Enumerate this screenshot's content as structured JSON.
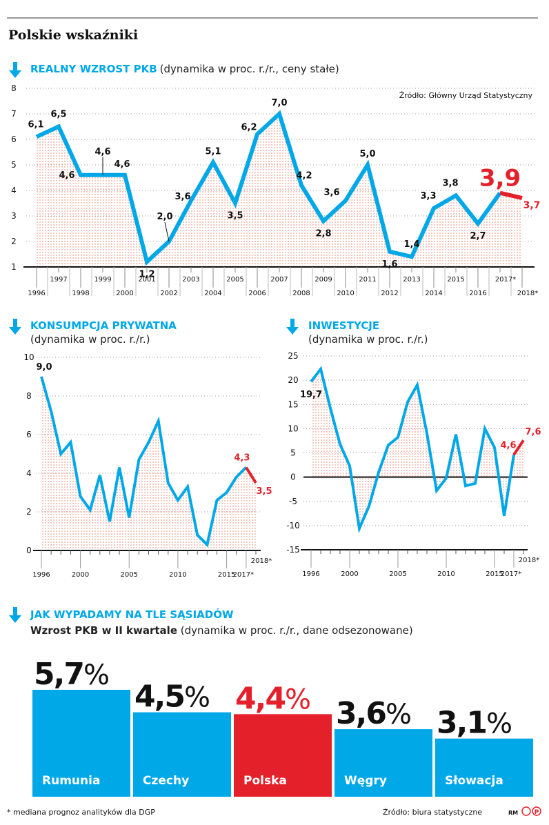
{
  "title": "Polskie wskaźniki",
  "colors": {
    "blue": "#00a8e8",
    "red": "#e4202a",
    "dots": "#f0a090"
  },
  "chart_data": [
    {
      "type": "line",
      "title": "REALNY WZROST PKB",
      "subtitle": "(dynamika w proc. r./r., ceny stałe)",
      "source": "Źródło: Główny Urząd Statystyczny",
      "ylim": [
        1,
        8
      ],
      "yticks": [
        "1",
        "2",
        "3",
        "4",
        "5",
        "6",
        "7",
        "8"
      ],
      "grid": true,
      "x": [
        "1996",
        "1997",
        "1998",
        "1999",
        "2000",
        "2001",
        "2002",
        "2003",
        "2004",
        "2005",
        "2006",
        "2007",
        "2008",
        "2009",
        "2010",
        "2011",
        "2012",
        "2013",
        "2014",
        "2015",
        "2016",
        "2017*",
        "2018*"
      ],
      "values": [
        6.1,
        6.5,
        4.6,
        4.6,
        4.6,
        1.2,
        2.0,
        3.6,
        5.1,
        3.5,
        6.2,
        7.0,
        4.2,
        2.8,
        3.6,
        5.0,
        1.6,
        1.4,
        3.3,
        3.8,
        2.7,
        3.9,
        3.7
      ],
      "labels": [
        "6,1",
        "6,5",
        "4,6",
        "4,6",
        "4,6",
        "1,2",
        "2,0",
        "3,6",
        "5,1",
        "3,5",
        "6,2",
        "7,0",
        "4,2",
        "2,8",
        "3,6",
        "5,0",
        "1,6",
        "1,4",
        "3,3",
        "3,8",
        "2,7",
        "3,9",
        "3,7"
      ],
      "forecast_from": "2017*"
    },
    {
      "type": "line",
      "title": "KONSUMPCJA PRYWATNA",
      "subtitle": "(dynamika w proc. r./r.)",
      "ylim": [
        0,
        10
      ],
      "yticks": [
        "0",
        "2",
        "4",
        "6",
        "8",
        "10"
      ],
      "grid": true,
      "x_tick_labels": [
        "1996",
        "2000",
        "2005",
        "2010",
        "2015",
        "2017*",
        "2018*"
      ],
      "x": [
        1996,
        1997,
        1998,
        1999,
        2000,
        2001,
        2002,
        2003,
        2004,
        2005,
        2006,
        2007,
        2008,
        2009,
        2010,
        2011,
        2012,
        2013,
        2014,
        2015,
        2016,
        2017,
        2018
      ],
      "values": [
        9.0,
        7.2,
        5.0,
        5.6,
        2.8,
        2.1,
        3.9,
        1.5,
        4.3,
        1.7,
        4.7,
        5.6,
        6.7,
        3.5,
        2.6,
        3.3,
        0.8,
        0.3,
        2.6,
        3.0,
        3.8,
        4.3,
        3.5
      ],
      "labels": {
        "first": "9,0",
        "2017": "4,3",
        "2018": "3,5"
      }
    },
    {
      "type": "line",
      "title": "INWESTYCJE",
      "subtitle": "(dynamika w proc. r./r.)",
      "ylim": [
        -15,
        25
      ],
      "yticks": [
        "-15",
        "-10",
        "-5",
        "0",
        "5",
        "10",
        "15",
        "20",
        "25"
      ],
      "grid": true,
      "x_tick_labels": [
        "1996",
        "2000",
        "2005",
        "2010",
        "2015",
        "2017*",
        "2018*"
      ],
      "x": [
        1996,
        1997,
        1998,
        1999,
        2000,
        2001,
        2002,
        2003,
        2004,
        2005,
        2006,
        2007,
        2008,
        2009,
        2010,
        2011,
        2012,
        2013,
        2014,
        2015,
        2016,
        2017,
        2018
      ],
      "values": [
        19.7,
        22.3,
        14.2,
        6.8,
        2.3,
        -10.6,
        -6.0,
        1.0,
        6.6,
        8.2,
        15.5,
        19.0,
        9.0,
        -2.8,
        -0.2,
        8.8,
        -1.8,
        -1.3,
        10.0,
        6.1,
        -8.0,
        4.6,
        7.6
      ],
      "labels": {
        "first": "19,7",
        "2017": "4,6",
        "2018": "7,6"
      }
    },
    {
      "type": "bar",
      "title": "JAK WYPADAMY NA TLE SĄSIADÓW",
      "subtitle_bold": "Wzrost PKB w II kwartale",
      "subtitle": " (dynamika w proc. r./r., dane odsezonowane)",
      "categories": [
        "Rumunia",
        "Czechy",
        "Polska",
        "Węgry",
        "Słowacja"
      ],
      "values": [
        5.7,
        4.5,
        4.4,
        3.6,
        3.1
      ],
      "labels": [
        "5,7",
        "4,5",
        "4,4",
        "3,6",
        "3,1"
      ],
      "unit": "%",
      "highlight": "Polska",
      "source": "Źródło: biura statystyczne"
    }
  ],
  "footer": {
    "note": "* mediana prognoz analityków dla DGP",
    "author": "RM",
    "logo": "©P"
  }
}
